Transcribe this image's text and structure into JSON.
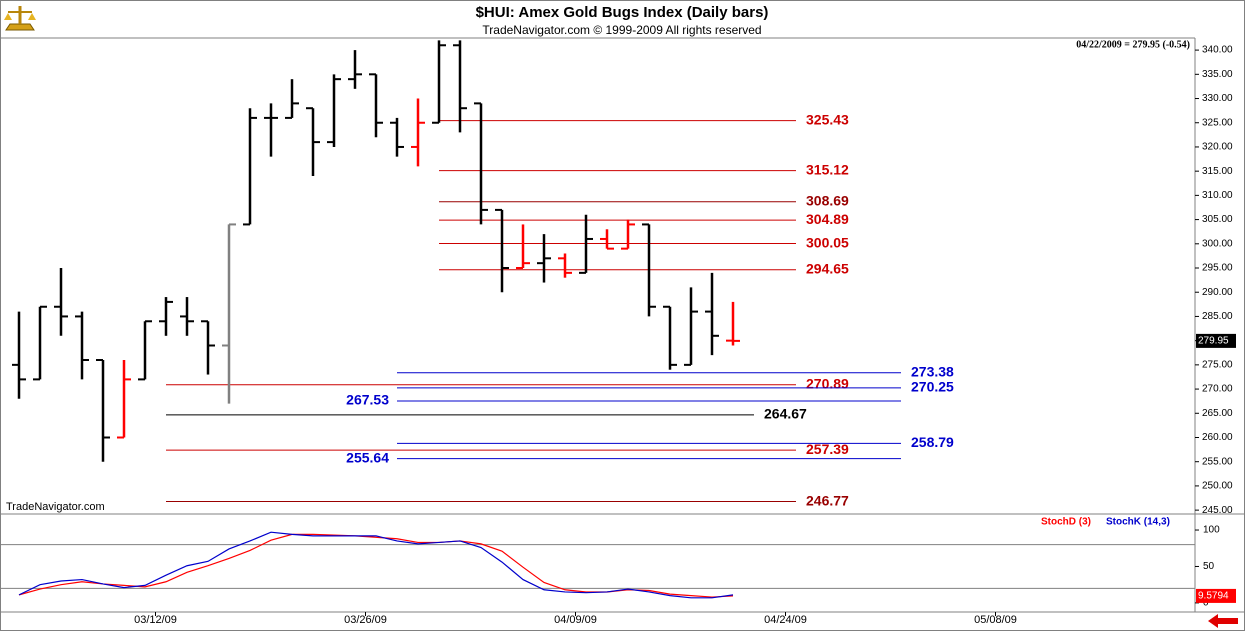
{
  "chart_data": {
    "type": "ohlc",
    "title": "$HUI:  Amex Gold Bugs Index  (Daily bars)",
    "subtitle": "TradeNavigator.com © 1999-2009 All rights reserved",
    "header": "04/22/2009 = 279.95 (-0.54)",
    "watermark": "TradeNavigator.com",
    "x": [
      "2009-03-04",
      "2009-03-05",
      "2009-03-06",
      "2009-03-09",
      "2009-03-10",
      "2009-03-11",
      "2009-03-12",
      "2009-03-13",
      "2009-03-16",
      "2009-03-17",
      "2009-03-18",
      "2009-03-19",
      "2009-03-20",
      "2009-03-23",
      "2009-03-24",
      "2009-03-25",
      "2009-03-26",
      "2009-03-27",
      "2009-03-30",
      "2009-03-31",
      "2009-04-01",
      "2009-04-02",
      "2009-04-03",
      "2009-04-06",
      "2009-04-07",
      "2009-04-08",
      "2009-04-09",
      "2009-04-13",
      "2009-04-14",
      "2009-04-15",
      "2009-04-16",
      "2009-04-17",
      "2009-04-20",
      "2009-04-21",
      "2009-04-22"
    ],
    "open": [
      275,
      272,
      287,
      285,
      276,
      260,
      272,
      284,
      285,
      284,
      279,
      304,
      326,
      326,
      328,
      321,
      334,
      335,
      325,
      320,
      325,
      341,
      329,
      307,
      295,
      296,
      297,
      294,
      301,
      299,
      304,
      287,
      275,
      286,
      280
    ],
    "high": [
      286,
      287,
      295,
      286,
      276,
      276,
      284,
      289,
      289,
      284,
      304,
      328,
      329,
      334,
      328,
      335,
      340,
      335,
      326,
      330,
      342,
      342,
      329,
      307,
      304,
      302,
      298,
      306,
      303,
      305,
      304,
      287,
      291,
      294,
      288
    ],
    "low": [
      268,
      272,
      281,
      272,
      255,
      260,
      272,
      281,
      281,
      273,
      267,
      304,
      318,
      326,
      314,
      320,
      332,
      322,
      318,
      316,
      325,
      323,
      304,
      290,
      295,
      292,
      293,
      294,
      299,
      299,
      285,
      274,
      275,
      277,
      279
    ],
    "close": [
      272,
      287,
      285,
      276,
      260,
      272,
      284,
      288,
      284,
      279,
      304,
      326,
      326,
      329,
      321,
      334,
      335,
      325,
      320,
      325,
      341,
      328,
      307,
      295,
      296,
      297,
      294,
      301,
      299,
      304,
      287,
      275,
      286,
      281,
      279.95
    ],
    "colors": [
      "#000000",
      "#000000",
      "#000000",
      "#000000",
      "#000000",
      "#ff0000",
      "#000000",
      "#000000",
      "#000000",
      "#000000",
      "#808080",
      "#000000",
      "#000000",
      "#000000",
      "#000000",
      "#000000",
      "#000000",
      "#000000",
      "#000000",
      "#ff0000",
      "#000000",
      "#000000",
      "#000000",
      "#000000",
      "#ff0000",
      "#000000",
      "#ff0000",
      "#000000",
      "#ff0000",
      "#ff0000",
      "#000000",
      "#000000",
      "#000000",
      "#000000",
      "#ff0000"
    ],
    "last_value": 279.95,
    "ylim": [
      244.2,
      342.5
    ],
    "yticks": [
      {
        "value": 245,
        "label": "245.00"
      },
      {
        "value": 250,
        "label": "250.00"
      },
      {
        "value": 255,
        "label": "255.00"
      },
      {
        "value": 260,
        "label": "260.00"
      },
      {
        "value": 265,
        "label": "265.00"
      },
      {
        "value": 270,
        "label": "270.00"
      },
      {
        "value": 275,
        "label": "275.00"
      },
      {
        "value": 280,
        "label": "280.00"
      },
      {
        "value": 285,
        "label": "285.00"
      },
      {
        "value": 290,
        "label": "290.00"
      },
      {
        "value": 295,
        "label": "295.00"
      },
      {
        "value": 300,
        "label": "300.00"
      },
      {
        "value": 305,
        "label": "305.00"
      },
      {
        "value": 310,
        "label": "310.00"
      },
      {
        "value": 315,
        "label": "315.00"
      },
      {
        "value": 320,
        "label": "320.00"
      },
      {
        "value": 325,
        "label": "325.00"
      },
      {
        "value": 330,
        "label": "330.00"
      },
      {
        "value": 335,
        "label": "335.00"
      },
      {
        "value": 340,
        "label": "340.00"
      }
    ],
    "xticks": [
      {
        "value": "2009-03-12",
        "label": "03/12/09"
      },
      {
        "value": "2009-03-26",
        "label": "03/26/09"
      },
      {
        "value": "2009-04-09",
        "label": "04/09/09"
      },
      {
        "value": "2009-04-24",
        "label": "04/24/09"
      },
      {
        "value": "2009-05-08",
        "label": "05/08/09"
      }
    ],
    "levels": [
      {
        "value": 325.43,
        "color": "#cc0000",
        "start": "2009-04-01",
        "end": "2009-04-27",
        "label_position": "right"
      },
      {
        "value": 315.12,
        "color": "#cc0000",
        "start": "2009-04-01",
        "end": "2009-04-27",
        "label_position": "right"
      },
      {
        "value": 308.69,
        "color": "#990000",
        "start": "2009-04-01",
        "end": "2009-04-27",
        "label_position": "right"
      },
      {
        "value": 304.89,
        "color": "#cc0000",
        "start": "2009-04-01",
        "end": "2009-04-27",
        "label_position": "right"
      },
      {
        "value": 300.05,
        "color": "#cc0000",
        "start": "2009-04-01",
        "end": "2009-04-27",
        "label_position": "right"
      },
      {
        "value": 294.65,
        "color": "#cc0000",
        "start": "2009-04-01",
        "end": "2009-04-27",
        "label_position": "right"
      },
      {
        "value": 273.38,
        "color": "#0000cc",
        "start": "2009-03-30",
        "end": "2009-05-04",
        "label_position": "right"
      },
      {
        "value": 270.89,
        "color": "#cc0000",
        "start": "2009-03-13",
        "end": "2009-04-27",
        "label_position": "right"
      },
      {
        "value": 270.25,
        "color": "#0000cc",
        "start": "2009-03-30",
        "end": "2009-05-04",
        "label_position": "right"
      },
      {
        "value": 267.53,
        "color": "#0000cc",
        "start": "2009-03-30",
        "end": "2009-05-04",
        "label_position": "left"
      },
      {
        "value": 264.67,
        "color": "#000000",
        "start": "2009-03-13",
        "end": "2009-04-23",
        "label_position": "right"
      },
      {
        "value": 258.79,
        "color": "#0000cc",
        "start": "2009-03-30",
        "end": "2009-05-04",
        "label_position": "right"
      },
      {
        "value": 257.39,
        "color": "#cc0000",
        "start": "2009-03-13",
        "end": "2009-04-27",
        "label_position": "right"
      },
      {
        "value": 255.64,
        "color": "#0000cc",
        "start": "2009-03-30",
        "end": "2009-05-04",
        "label_position": "left"
      },
      {
        "value": 246.77,
        "color": "#990000",
        "start": "2009-03-13",
        "end": "2009-04-27",
        "label_position": "right"
      }
    ],
    "indicator": {
      "type": "line",
      "ylim": [
        -12.5,
        122
      ],
      "yticks": [
        0,
        50,
        100
      ],
      "hlines": [
        80,
        20
      ],
      "series": [
        {
          "name": "StochD (3)",
          "color": "#ff0000",
          "values": [
            11,
            19,
            25,
            29,
            26,
            24,
            22,
            29,
            42,
            51,
            61,
            72,
            86,
            94,
            94,
            93,
            92,
            90,
            88,
            83,
            83,
            85,
            81,
            71,
            49,
            28,
            18,
            15,
            15,
            18,
            17,
            12,
            10,
            8,
            9.5794
          ]
        },
        {
          "name": "StochK (14,3)",
          "color": "#0000cc",
          "values": [
            11,
            25,
            30,
            32,
            26,
            21,
            24,
            38,
            51,
            57,
            74,
            85,
            97,
            94,
            92,
            92,
            92,
            92,
            85,
            81,
            83,
            85,
            76,
            56,
            32,
            18,
            15,
            14,
            15,
            19,
            15,
            10,
            7,
            7,
            11
          ]
        }
      ]
    }
  }
}
